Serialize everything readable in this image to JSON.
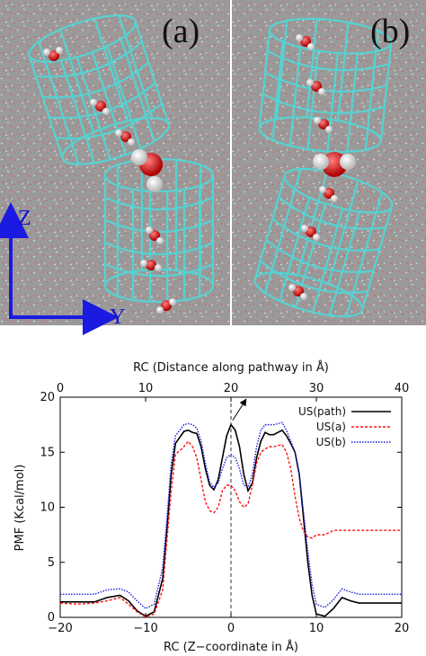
{
  "images": {
    "panel_a_label": "(a)",
    "panel_b_label": "(b)",
    "z_axis_label": "Z",
    "y_axis_label": "Y",
    "background_color": "#9a9a9a",
    "cage_color": "#56d2d2",
    "arrow_color": "#1a1ae0"
  },
  "chart_data": {
    "type": "line",
    "title": "",
    "xlabel": "RC (Z−coordinate in Å)",
    "x2label": "RC (Distance along pathway in Å)",
    "ylabel": "PMF (Kcal/mol)",
    "xlim": [
      -20,
      20
    ],
    "x2lim": [
      0,
      40
    ],
    "ylim": [
      0,
      20
    ],
    "xticks": [
      "−20",
      "−10",
      "0",
      "10",
      "20"
    ],
    "x2ticks": [
      "0",
      "10",
      "20",
      "30",
      "40"
    ],
    "yticks": [
      "0",
      "5",
      "10",
      "15",
      "20"
    ],
    "legend_position": "top-right",
    "annotations": [
      "vertical dashed line at x = 0",
      "arrow from the central peak pointing up-right"
    ],
    "series": [
      {
        "name": "US(path)",
        "color": "#000000",
        "style": "solid",
        "x": [
          -20,
          -18,
          -16,
          -14.5,
          -13,
          -12,
          -11,
          -10,
          -9,
          -8,
          -7.5,
          -7,
          -6.5,
          -5.5,
          -5,
          -4.5,
          -4,
          -3.5,
          -3,
          -2.5,
          -2,
          -1.5,
          -1,
          -0.5,
          0,
          0.5,
          1,
          1.5,
          2,
          2.5,
          3,
          3.5,
          4,
          4.5,
          5,
          5.5,
          6,
          6.5,
          7,
          7.5,
          8,
          8.5,
          9,
          9.5,
          10,
          11,
          12,
          13,
          14,
          15,
          16,
          17,
          18,
          20
        ],
        "y": [
          1.4,
          1.4,
          1.4,
          1.8,
          2.0,
          1.5,
          0.6,
          0.1,
          0.5,
          3.5,
          8.0,
          13.0,
          15.8,
          16.9,
          17.0,
          16.8,
          16.7,
          15.5,
          13.5,
          12.0,
          11.6,
          12.5,
          14.5,
          16.5,
          17.5,
          17.0,
          15.5,
          13.0,
          11.5,
          12.2,
          14.5,
          16.0,
          16.8,
          16.6,
          16.6,
          16.8,
          17.0,
          16.5,
          15.8,
          15.0,
          13.0,
          9.0,
          5.0,
          2.0,
          0.3,
          0.1,
          0.8,
          1.8,
          1.5,
          1.3,
          1.3,
          1.3,
          1.3,
          1.3
        ]
      },
      {
        "name": "US(a)",
        "color": "#ff1010",
        "style": "dotted",
        "x": [
          -20,
          -18,
          -16,
          -14.5,
          -13,
          -12,
          -11,
          -10,
          -9,
          -8,
          -7.5,
          -7,
          -6.5,
          -5.5,
          -5,
          -4.5,
          -4,
          -3.5,
          -3,
          -2.5,
          -2,
          -1.5,
          -1,
          -0.5,
          0,
          0.5,
          1,
          1.5,
          2,
          2.5,
          3,
          3.5,
          4,
          4.5,
          5,
          5.5,
          6,
          6.5,
          7,
          7.5,
          8,
          8.5,
          9,
          9.5,
          10,
          11,
          12,
          13,
          14,
          15,
          16,
          17,
          18,
          20
        ],
        "y": [
          1.3,
          1.2,
          1.3,
          1.5,
          1.8,
          1.2,
          0.5,
          0.05,
          0.3,
          2.5,
          7.0,
          11.5,
          14.8,
          15.5,
          16.0,
          15.5,
          14.5,
          12.5,
          10.5,
          9.7,
          9.5,
          10.0,
          11.5,
          12.0,
          12.0,
          11.5,
          10.5,
          10.0,
          10.3,
          12.0,
          14.0,
          15.0,
          15.3,
          15.5,
          15.5,
          15.6,
          15.7,
          15.0,
          13.5,
          11.0,
          9.0,
          7.8,
          7.3,
          7.2,
          7.5,
          7.5,
          7.9,
          7.9,
          7.9,
          7.9,
          7.9,
          7.9,
          7.9,
          7.9
        ]
      },
      {
        "name": "US(b)",
        "color": "#1a1ae0",
        "style": "dotted",
        "x": [
          -20,
          -18,
          -16,
          -14.5,
          -13,
          -12,
          -11,
          -10,
          -9,
          -8,
          -7.5,
          -7,
          -6.5,
          -5.5,
          -5,
          -4.5,
          -4,
          -3.5,
          -3,
          -2.5,
          -2,
          -1.5,
          -1,
          -0.5,
          0,
          0.5,
          1,
          1.5,
          2,
          2.5,
          3,
          3.5,
          4,
          4.5,
          5,
          5.5,
          6,
          6.5,
          7,
          7.5,
          8,
          8.5,
          9,
          9.5,
          10,
          11,
          12,
          13,
          14,
          15,
          16,
          17,
          18,
          20
        ],
        "y": [
          2.1,
          2.1,
          2.1,
          2.5,
          2.6,
          2.3,
          1.5,
          0.8,
          1.2,
          4.5,
          9.0,
          14.0,
          16.5,
          17.5,
          17.6,
          17.5,
          17.2,
          16.0,
          14.0,
          12.3,
          11.8,
          12.2,
          13.5,
          14.5,
          14.8,
          14.5,
          13.5,
          12.0,
          11.8,
          13.0,
          15.5,
          17.0,
          17.5,
          17.5,
          17.5,
          17.6,
          17.7,
          17.0,
          16.0,
          15.0,
          13.0,
          9.5,
          6.0,
          3.0,
          1.2,
          0.9,
          1.6,
          2.6,
          2.3,
          2.1,
          2.1,
          2.1,
          2.1,
          2.1
        ]
      }
    ]
  }
}
